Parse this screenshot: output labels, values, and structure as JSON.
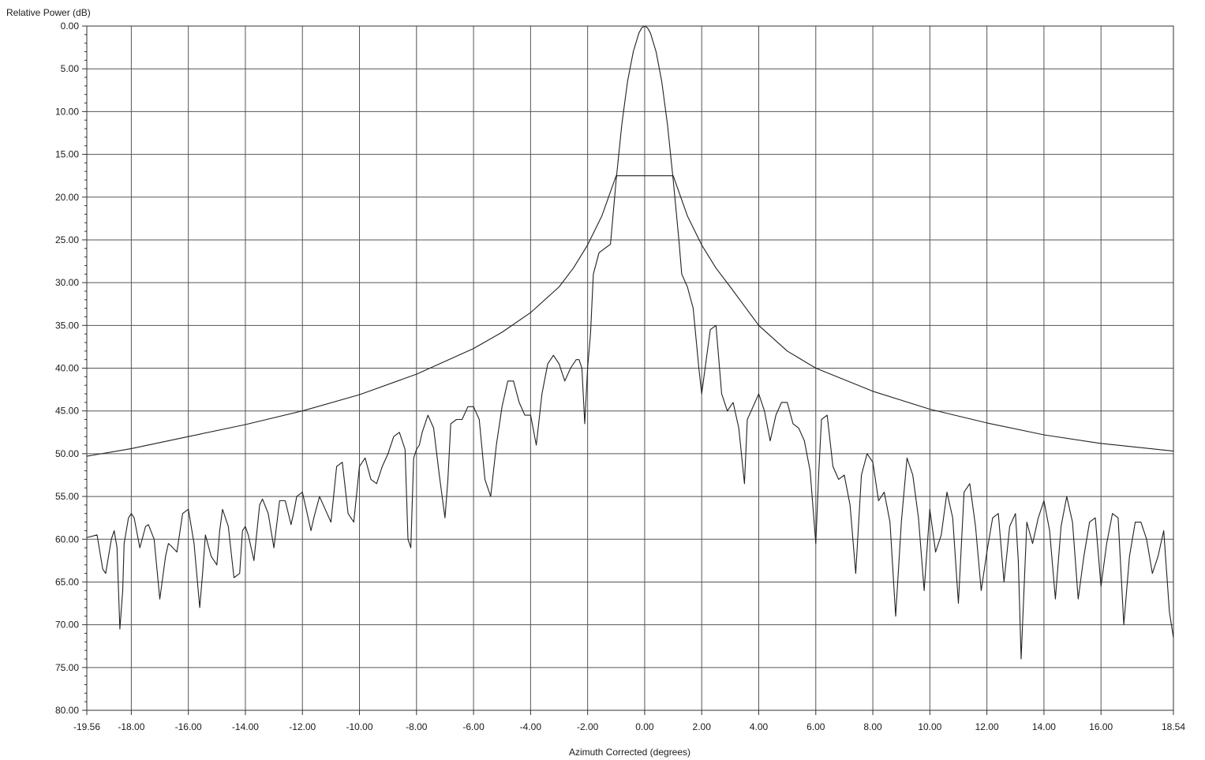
{
  "chart_data": {
    "type": "line",
    "ylabel": "Relative Power (dB)",
    "xlabel": "Azimuth Corrected (degrees)",
    "xlim": [
      -19.56,
      18.54
    ],
    "ylim": [
      0,
      80
    ],
    "y_inverted": true,
    "grid": true,
    "x_ticks": [
      -19.56,
      -18,
      -16,
      -14,
      -12,
      -10,
      -8,
      -6,
      -4,
      -2,
      0,
      2,
      4,
      6,
      8,
      10,
      12,
      14,
      16,
      18.54
    ],
    "x_tick_labels": [
      "-19.56",
      "-18.00",
      "-16.00",
      "-14.00",
      "-12.00",
      "-10.00",
      "-8.00",
      "-6.00",
      "-4.00",
      "-2.00",
      "0.00",
      "2.00",
      "4.00",
      "6.00",
      "8.00",
      "10.00",
      "12.00",
      "14.00",
      "16.00",
      "18.54"
    ],
    "y_ticks": [
      0,
      5,
      10,
      15,
      20,
      25,
      30,
      35,
      40,
      45,
      50,
      55,
      60,
      65,
      70,
      75,
      80
    ],
    "y_tick_labels": [
      "0.00",
      "5.00",
      "10.00",
      "15.00",
      "20.00",
      "25.00",
      "30.00",
      "35.00",
      "40.00",
      "45.00",
      "50.00",
      "55.00",
      "60.00",
      "65.00",
      "70.00",
      "75.00",
      "80.00"
    ],
    "series": [
      {
        "x": [
          -19.56,
          -18,
          -16,
          -14,
          -12,
          -10,
          -8,
          -6,
          -5,
          -4,
          -3,
          -2.5,
          -2,
          -1.5,
          -1,
          1,
          1.5,
          2,
          2.5,
          3,
          4,
          5,
          6,
          8,
          10,
          12,
          14,
          16,
          18.54
        ],
        "y": [
          50.3,
          49.4,
          48.0,
          46.6,
          45.0,
          43.1,
          40.7,
          37.7,
          35.8,
          33.5,
          30.5,
          28.3,
          25.6,
          22.2,
          17.5,
          17.5,
          22.2,
          25.6,
          28.3,
          30.5,
          35.0,
          38.0,
          40.0,
          42.7,
          44.8,
          46.4,
          47.8,
          48.8,
          49.7
        ]
      },
      {
        "x": [
          -1.0,
          -0.8,
          -0.6,
          -0.4,
          -0.2,
          -0.1,
          0.0,
          0.1,
          0.2,
          0.4,
          0.6,
          0.8,
          1.0
        ],
        "y": [
          18.0,
          11.5,
          6.5,
          3.0,
          0.8,
          0.2,
          0.0,
          0.2,
          0.8,
          3.0,
          6.5,
          11.5,
          18.0
        ]
      },
      {
        "x": [
          -19.56,
          -19.2,
          -19.0,
          -18.9,
          -18.7,
          -18.6,
          -18.5,
          -18.4,
          -18.3,
          -18.25,
          -18.1,
          -18.0,
          -17.9,
          -17.7,
          -17.5,
          -17.4,
          -17.2,
          -17.0,
          -16.8,
          -16.7,
          -16.6,
          -16.4,
          -16.2,
          -16.0,
          -15.8,
          -15.6,
          -15.5,
          -15.4,
          -15.2,
          -15.0,
          -14.9,
          -14.8,
          -14.6,
          -14.4,
          -14.2,
          -14.1,
          -14.0,
          -13.9,
          -13.7,
          -13.5,
          -13.4,
          -13.2,
          -13.0,
          -12.8,
          -12.6,
          -12.4,
          -12.3,
          -12.2,
          -12.0,
          -11.8,
          -11.7,
          -11.6,
          -11.4,
          -11.2,
          -11.0,
          -10.8,
          -10.6,
          -10.4,
          -10.2,
          -10.0,
          -9.8,
          -9.6,
          -9.4,
          -9.2,
          -9.0,
          -8.8,
          -8.6,
          -8.4,
          -8.3,
          -8.2,
          -8.1,
          -8.0,
          -7.9,
          -7.8,
          -7.6,
          -7.4,
          -7.2,
          -7.0,
          -6.9,
          -6.8,
          -6.6,
          -6.4,
          -6.2,
          -6.0,
          -5.8,
          -5.6,
          -5.4,
          -5.2,
          -5.0,
          -4.8,
          -4.6,
          -4.4,
          -4.2,
          -4.0,
          -3.8,
          -3.6,
          -3.4,
          -3.2,
          -3.0,
          -2.8,
          -2.6,
          -2.4,
          -2.3,
          -2.2,
          -2.1,
          -2.0,
          -1.9,
          -1.8,
          -1.6,
          -1.4,
          -1.2,
          -1.0
        ],
        "y": [
          59.8,
          59.5,
          63.5,
          64.0,
          60.0,
          59.0,
          61.0,
          70.5,
          66.0,
          60.5,
          57.5,
          57.0,
          57.5,
          61.0,
          58.5,
          58.3,
          60.0,
          67.0,
          62.0,
          60.5,
          60.8,
          61.5,
          57.0,
          56.5,
          60.5,
          68.0,
          64.0,
          59.5,
          62.0,
          63.0,
          59.0,
          56.5,
          58.5,
          64.5,
          64.0,
          59.0,
          58.5,
          59.5,
          62.5,
          56.0,
          55.3,
          57.0,
          61.0,
          55.5,
          55.5,
          58.3,
          56.8,
          55.0,
          54.5,
          57.5,
          59.0,
          57.5,
          55.0,
          56.5,
          58.0,
          51.5,
          51.0,
          57.0,
          58.0,
          51.5,
          50.5,
          53.0,
          53.5,
          51.5,
          50.0,
          48.0,
          47.5,
          49.5,
          60.0,
          61.0,
          50.5,
          49.5,
          49.0,
          47.5,
          45.5,
          47.0,
          52.5,
          57.5,
          53.0,
          46.5,
          46.0,
          46.0,
          44.5,
          44.5,
          46.0,
          53.0,
          55.0,
          49.0,
          44.5,
          41.5,
          41.5,
          44.0,
          45.5,
          45.5,
          49.0,
          43.0,
          39.5,
          38.5,
          39.5,
          41.5,
          40.0,
          39.0,
          39.0,
          40.0,
          46.5,
          40.0,
          36.0,
          29.0,
          26.5,
          26.0,
          25.5,
          18.0
        ]
      },
      {
        "x": [
          1.0,
          1.2,
          1.3,
          1.5,
          1.7,
          1.9,
          2.0,
          2.1,
          2.3,
          2.5,
          2.7,
          2.9,
          3.1,
          3.3,
          3.5,
          3.6,
          3.8,
          4.0,
          4.2,
          4.4,
          4.6,
          4.8,
          5.0,
          5.2,
          5.4,
          5.6,
          5.8,
          6.0,
          6.1,
          6.2,
          6.4,
          6.6,
          6.8,
          7.0,
          7.2,
          7.4,
          7.6,
          7.8,
          8.0,
          8.2,
          8.4,
          8.6,
          8.8,
          9.0,
          9.2,
          9.4,
          9.6,
          9.8,
          10.0,
          10.2,
          10.4,
          10.6,
          10.8,
          11.0,
          11.2,
          11.4,
          11.6,
          11.8,
          12.0,
          12.2,
          12.4,
          12.6,
          12.8,
          13.0,
          13.1,
          13.2,
          13.4,
          13.6,
          13.8,
          14.0,
          14.2,
          14.4,
          14.6,
          14.8,
          15.0,
          15.2,
          15.4,
          15.6,
          15.8,
          16.0,
          16.2,
          16.4,
          16.6,
          16.8,
          17.0,
          17.2,
          17.4,
          17.6,
          17.8,
          18.0,
          18.2,
          18.4,
          18.54
        ],
        "y": [
          18.0,
          25.0,
          29.0,
          30.5,
          33.0,
          40.0,
          43.0,
          40.5,
          35.5,
          35.0,
          43.0,
          45.0,
          44.0,
          47.0,
          53.5,
          46.0,
          44.5,
          43.0,
          45.0,
          48.5,
          45.5,
          44.0,
          44.0,
          46.5,
          47.0,
          48.5,
          52.0,
          60.5,
          52.5,
          46.0,
          45.5,
          51.5,
          53.0,
          52.5,
          56.0,
          64.0,
          52.5,
          50.0,
          51.0,
          55.5,
          54.5,
          58.0,
          69.0,
          58.0,
          50.5,
          52.5,
          57.5,
          66.0,
          56.5,
          61.5,
          59.5,
          54.5,
          57.5,
          67.5,
          54.5,
          53.5,
          58.5,
          66.0,
          61.5,
          57.5,
          57.0,
          65.0,
          58.5,
          57.0,
          62.5,
          74.0,
          58.0,
          60.5,
          57.5,
          55.5,
          59.0,
          67.0,
          58.5,
          55.0,
          58.0,
          67.0,
          62.0,
          58.0,
          57.5,
          65.5,
          60.5,
          57.0,
          57.5,
          70.0,
          62.0,
          58.0,
          58.0,
          60.0,
          64.0,
          62.0,
          59.0,
          68.5,
          71.5
        ]
      }
    ]
  }
}
